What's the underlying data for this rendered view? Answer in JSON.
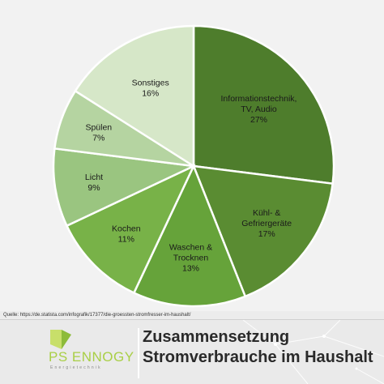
{
  "chart_data": {
    "type": "pie",
    "slices": [
      {
        "label_lines": [
          "Informationstechnik,",
          "TV, Audio"
        ],
        "value": 27,
        "value_label": "27%",
        "color": "#4e7d2c"
      },
      {
        "label_lines": [
          "Kühl- &",
          "Gefriergeräte"
        ],
        "value": 17,
        "value_label": "17%",
        "color": "#5a8c32"
      },
      {
        "label_lines": [
          "Waschen &",
          "Trocknen"
        ],
        "value": 13,
        "value_label": "13%",
        "color": "#66a33a"
      },
      {
        "label_lines": [
          "Kochen"
        ],
        "value": 11,
        "value_label": "11%",
        "color": "#78b248"
      },
      {
        "label_lines": [
          "Licht"
        ],
        "value": 9,
        "value_label": "9%",
        "color": "#9ac580"
      },
      {
        "label_lines": [
          "Spülen"
        ],
        "value": 7,
        "value_label": "7%",
        "color": "#b5d4a1"
      },
      {
        "label_lines": [
          "Sonstiges"
        ],
        "value": 16,
        "value_label": "16%",
        "color": "#d6e7c8"
      }
    ]
  },
  "source": "Quelle: https://de.statista.com/infografik/17377/die-groessten-stromfresser-im-haushalt/",
  "brand": {
    "name": "PS ENNOGY",
    "tagline": "Energietechnik",
    "logo_colors": {
      "light": "#c8df6a",
      "dark": "#8dbb3a"
    }
  },
  "footer_title": {
    "line1": "Zusammensetzung",
    "line2": "Stromverbrauche im Haushalt"
  }
}
